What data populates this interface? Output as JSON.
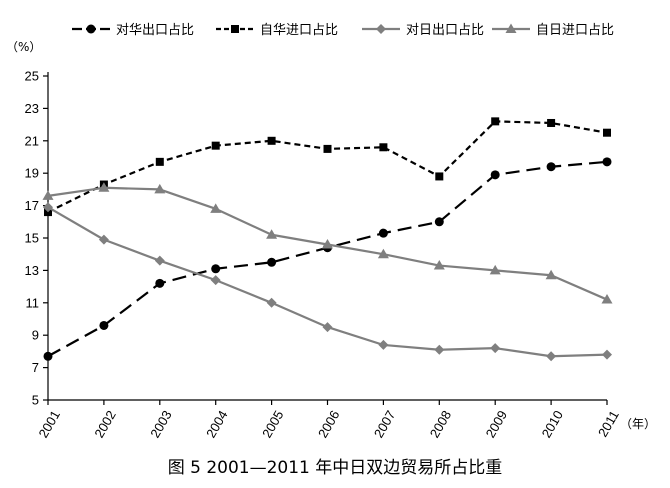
{
  "chart_data": {
    "type": "line",
    "caption": "图 5   2001—2011 年中日双边贸易所占比重",
    "y_unit": "（%）",
    "x_unit": "（年）",
    "x": [
      "2001",
      "2002",
      "2003",
      "2004",
      "2005",
      "2006",
      "2007",
      "2008",
      "2009",
      "2010",
      "2011"
    ],
    "ylim": [
      5,
      25
    ],
    "yticks": [
      5,
      7,
      9,
      11,
      13,
      15,
      17,
      19,
      21,
      23,
      25
    ],
    "grid": false,
    "legend_position": "top",
    "series": [
      {
        "name": "对华出口占比",
        "color": "#000000",
        "marker": "circle",
        "dash": "long-dash",
        "values": [
          7.7,
          9.6,
          12.2,
          13.1,
          13.5,
          14.4,
          15.3,
          16.0,
          18.9,
          19.4,
          19.7
        ]
      },
      {
        "name": "自华进口占比",
        "color": "#000000",
        "marker": "square",
        "dash": "short-dash",
        "values": [
          16.6,
          18.3,
          19.7,
          20.7,
          21.0,
          20.5,
          20.6,
          18.8,
          22.2,
          22.1,
          21.5
        ]
      },
      {
        "name": "对日出口占比",
        "color": "#7f7f7f",
        "marker": "diamond",
        "dash": "solid",
        "values": [
          16.9,
          14.9,
          13.6,
          12.4,
          11.0,
          9.5,
          8.4,
          8.1,
          8.2,
          7.7,
          7.8
        ]
      },
      {
        "name": "自日进口占比",
        "color": "#7f7f7f",
        "marker": "triangle",
        "dash": "solid",
        "values": [
          17.6,
          18.1,
          18.0,
          16.8,
          15.2,
          14.6,
          14.0,
          13.3,
          13.0,
          12.7,
          11.2
        ]
      }
    ]
  }
}
